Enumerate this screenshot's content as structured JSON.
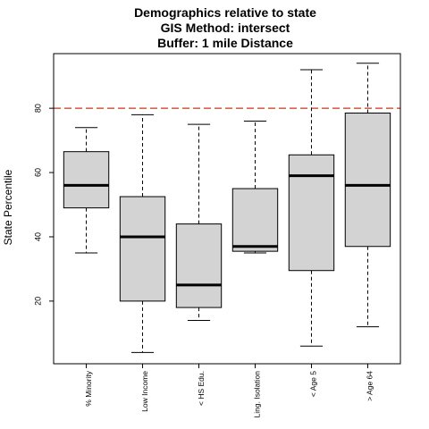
{
  "chart_data": {
    "type": "box",
    "title": [
      "Demographics relative to state",
      "GIS Method: intersect",
      "Buffer: 1 mile Distance"
    ],
    "ylabel": "State Percentile",
    "xlabel": "",
    "ylim": [
      0.5,
      97
    ],
    "yticks": [
      20,
      40,
      60,
      80
    ],
    "reference_line": {
      "value": 80,
      "color": "#cc3322",
      "style": "dashed"
    },
    "box_fill": "#d3d3d3",
    "categories": [
      "% Minority",
      "Low Income",
      "< HS Edu.",
      "Ling. Isolation",
      "< Age 5",
      "> Age 64"
    ],
    "boxes": [
      {
        "min": 35,
        "q1": 49,
        "median": 56,
        "q3": 66.5,
        "max": 74
      },
      {
        "min": 4,
        "q1": 20,
        "median": 40,
        "q3": 52.5,
        "max": 78
      },
      {
        "min": 14,
        "q1": 18,
        "median": 25,
        "q3": 44,
        "max": 75
      },
      {
        "min": 35,
        "q1": 35.5,
        "median": 37,
        "q3": 55,
        "max": 76
      },
      {
        "min": 6,
        "q1": 29.5,
        "median": 59,
        "q3": 65.5,
        "max": 92
      },
      {
        "min": 12,
        "q1": 37,
        "median": 56,
        "q3": 78.5,
        "max": 94
      }
    ],
    "grid": false,
    "legend": "none"
  }
}
